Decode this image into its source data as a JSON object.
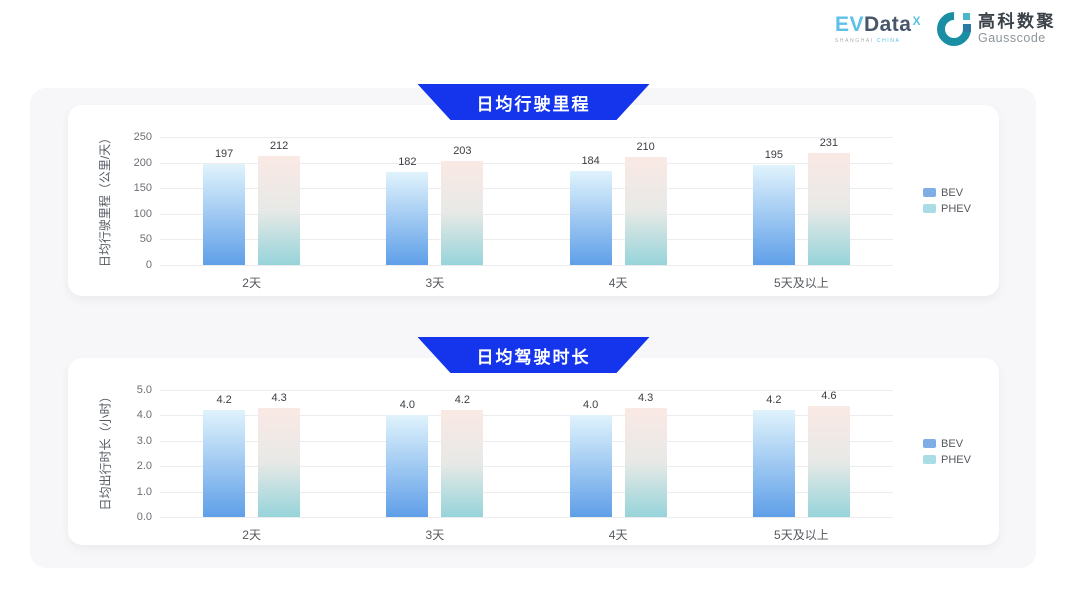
{
  "header": {
    "evdata": {
      "ev": "EV",
      "data": "Data",
      "sup": "X",
      "sub1": "SHANGHAI",
      "sub2": "CHINA"
    },
    "gausscode": {
      "cn": "高科数聚",
      "en": "Gausscode"
    }
  },
  "colors": {
    "banner_blue": "#1535ec",
    "panel_bg": "#f7f7f9",
    "series": [
      {
        "name": "BEV",
        "legend": "#7fade6",
        "gradient": [
          "#e0f3fc",
          "#5f9fe8"
        ]
      },
      {
        "name": "PHEV",
        "legend": "#a9dde6",
        "gradient": [
          "#fae9e5",
          "#e7e9e6",
          "#96d4da"
        ]
      }
    ]
  },
  "chart_data": [
    {
      "type": "bar",
      "title": "日均行驶里程",
      "ylabel": "日均行驶里程（公里/天）",
      "categories": [
        "2天",
        "3天",
        "4天",
        "5天及以上"
      ],
      "series": [
        {
          "name": "BEV",
          "values": [
            197,
            182,
            184,
            195
          ],
          "labels": [
            "197",
            "182",
            "184",
            "195"
          ]
        },
        {
          "name": "PHEV",
          "values": [
            212,
            203,
            210,
            231
          ],
          "labels": [
            "212",
            "203",
            "210",
            "231"
          ]
        }
      ],
      "ylim": [
        0,
        250
      ],
      "yticks": [
        "250",
        "200",
        "150",
        "100",
        "50",
        "0"
      ],
      "grid": true,
      "legend_position": "right"
    },
    {
      "type": "bar",
      "title": "日均驾驶时长",
      "ylabel": "日均出行时长（小时）",
      "categories": [
        "2天",
        "3天",
        "4天",
        "5天及以上"
      ],
      "series": [
        {
          "name": "BEV",
          "values": [
            4.2,
            4.0,
            4.0,
            4.2
          ],
          "labels": [
            "4.2",
            "4.0",
            "4.0",
            "4.2"
          ]
        },
        {
          "name": "PHEV",
          "values": [
            4.3,
            4.2,
            4.3,
            4.6
          ],
          "labels": [
            "4.3",
            "4.2",
            "4.3",
            "4.6"
          ]
        }
      ],
      "ylim": [
        0,
        5
      ],
      "yticks": [
        "5.0",
        "4.0",
        "3.0",
        "2.0",
        "1.0",
        "0.0"
      ],
      "grid": true,
      "legend_position": "right"
    }
  ]
}
